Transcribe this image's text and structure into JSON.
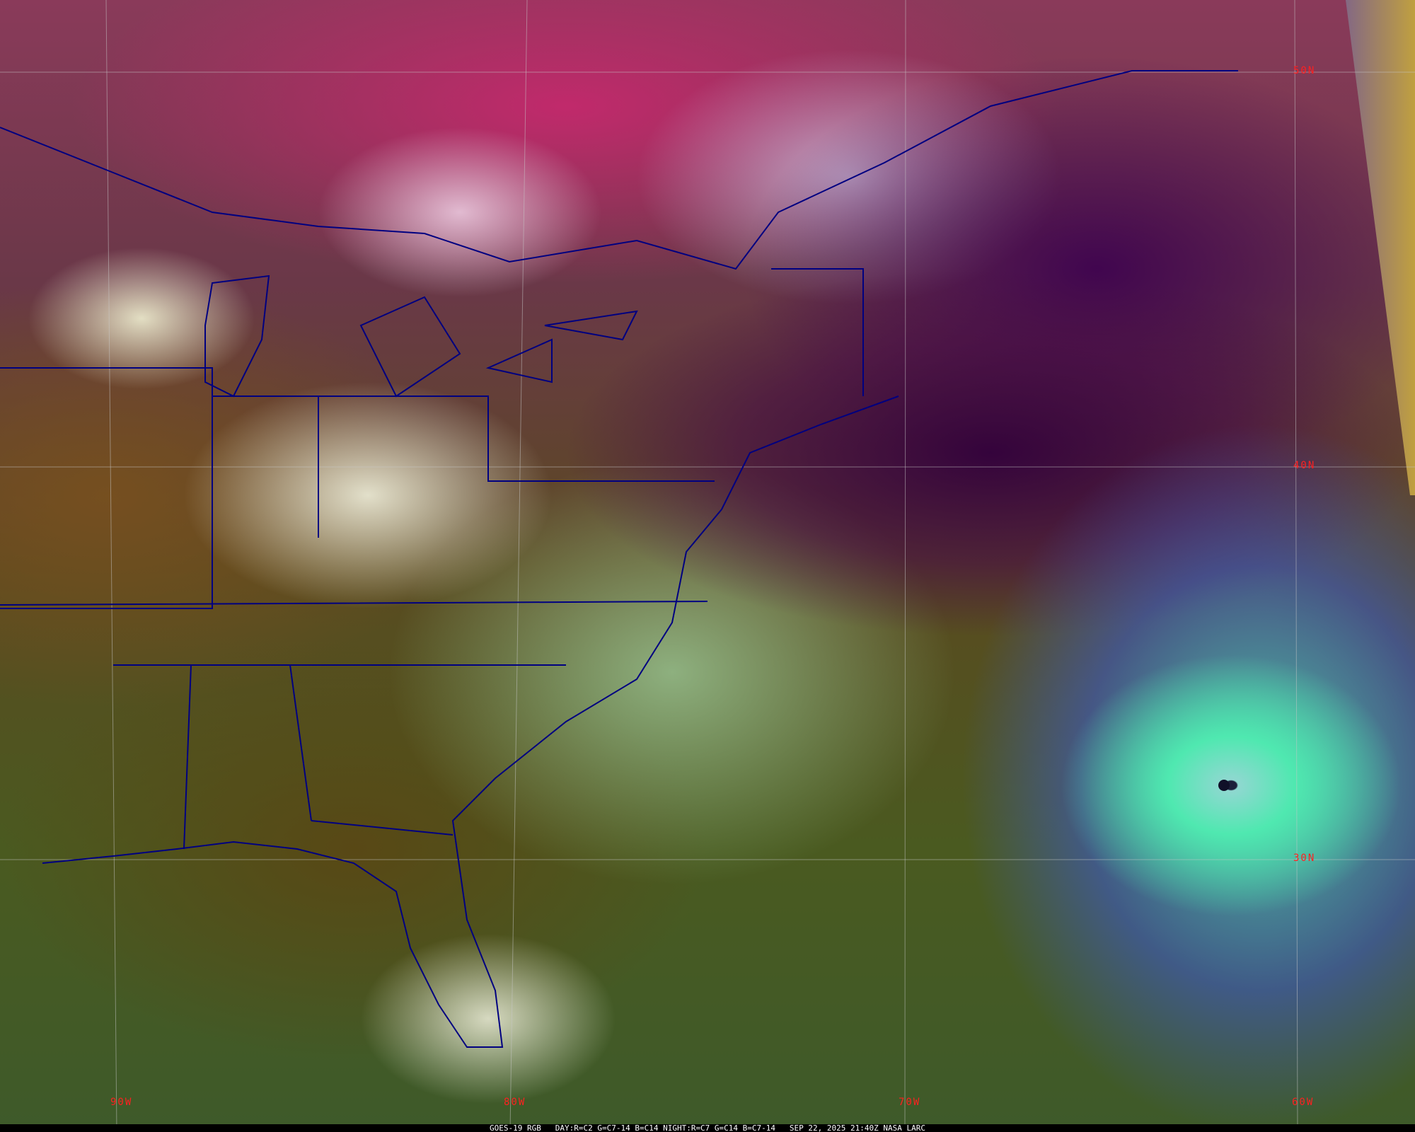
{
  "caption": {
    "text": "GOES-19 RGB   DAY:R=C2 G=C7-14 B=C14 NIGHT:R=C7 G=C14 B=C7-14   SEP 22, 2025 21:40Z NASA LARC"
  },
  "grid": {
    "latitudes": [
      "50N",
      "40N",
      "30N"
    ],
    "longitudes": [
      "90W",
      "80W",
      "70W",
      "60W"
    ]
  },
  "colors": {
    "grid_label": "#ff2020",
    "borders": "#000080",
    "grid_lines": "#c8c8c8"
  }
}
